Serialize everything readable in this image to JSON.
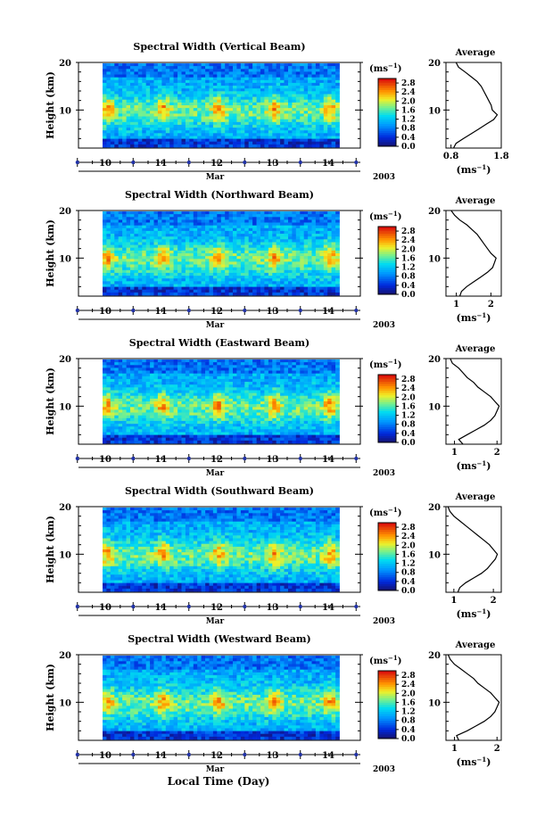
{
  "figure_xlabel": "Local Time (Day)",
  "chart_data": [
    {
      "type": "heatmap",
      "title": "Spectral Width (Vertical Beam)",
      "ylabel": "Height (km)",
      "ylim": [
        2,
        20
      ],
      "yticks": [
        10,
        20
      ],
      "xticks": [
        "10",
        "11",
        "12",
        "13",
        "14"
      ],
      "month": "Mar",
      "year": "2003",
      "cbar_unit": "(ms",
      "cbar_exp": "−1",
      "cbar_ticks": [
        "0.0",
        "0.4",
        "0.8",
        "1.2",
        "1.6",
        "2.0",
        "2.4",
        "2.8"
      ],
      "cbar_range": [
        0,
        3.0
      ],
      "profile": {
        "title": "Average",
        "xlim": [
          0.7,
          1.8
        ],
        "xtick_labels": [
          "0.8",
          "1.8"
        ],
        "xtick_values": [
          0.8,
          1.8
        ],
        "xunit": "(ms",
        "xexp": "−1",
        "heights": [
          2,
          3,
          4,
          5,
          6,
          7,
          8,
          9,
          10,
          11,
          12,
          13,
          14,
          15,
          16,
          17,
          18,
          19,
          20
        ],
        "values": [
          0.85,
          0.9,
          1.05,
          1.2,
          1.35,
          1.5,
          1.65,
          1.72,
          1.62,
          1.6,
          1.55,
          1.5,
          1.45,
          1.4,
          1.32,
          1.2,
          1.08,
          0.95,
          0.9
        ]
      }
    },
    {
      "type": "heatmap",
      "title": "Spectral Width (Northward Beam)",
      "ylabel": "Height (km)",
      "ylim": [
        2,
        20
      ],
      "yticks": [
        10,
        20
      ],
      "xticks": [
        "10",
        "11",
        "12",
        "13",
        "14"
      ],
      "month": "Mar",
      "year": "2003",
      "cbar_unit": "(ms",
      "cbar_exp": "−1",
      "cbar_ticks": [
        "0.0",
        "0.4",
        "0.8",
        "1.2",
        "1.6",
        "2.0",
        "2.4",
        "2.8"
      ],
      "cbar_range": [
        0,
        3.0
      ],
      "profile": {
        "title": "Average",
        "xlim": [
          0.7,
          2.3
        ],
        "xtick_labels": [
          "1",
          "2"
        ],
        "xtick_values": [
          1,
          2
        ],
        "xunit": "(ms",
        "xexp": "−1",
        "heights": [
          2,
          3,
          4,
          5,
          6,
          7,
          8,
          9,
          10,
          11,
          12,
          13,
          14,
          15,
          16,
          17,
          18,
          19,
          20
        ],
        "values": [
          1.1,
          1.15,
          1.3,
          1.5,
          1.7,
          1.9,
          2.05,
          2.1,
          2.15,
          2.0,
          1.9,
          1.8,
          1.7,
          1.6,
          1.45,
          1.3,
          1.1,
          0.95,
          0.85
        ]
      }
    },
    {
      "type": "heatmap",
      "title": "Spectral Width (Eastward Beam)",
      "ylabel": "Height (km)",
      "ylim": [
        2,
        20
      ],
      "yticks": [
        10,
        20
      ],
      "xticks": [
        "10",
        "11",
        "12",
        "13",
        "14"
      ],
      "month": "Mar",
      "year": "2003",
      "cbar_unit": "(ms",
      "cbar_exp": "−1",
      "cbar_ticks": [
        "0.0",
        "0.4",
        "0.8",
        "1.2",
        "1.6",
        "2.0",
        "2.4",
        "2.8"
      ],
      "cbar_range": [
        0,
        3.0
      ],
      "profile": {
        "title": "Average",
        "xlim": [
          0.8,
          2.1
        ],
        "xtick_labels": [
          "1",
          "2"
        ],
        "xtick_values": [
          1,
          2
        ],
        "xunit": "(ms",
        "xexp": "−1",
        "heights": [
          2,
          3,
          4,
          5,
          6,
          7,
          8,
          9,
          10,
          11,
          12,
          13,
          14,
          15,
          16,
          17,
          18,
          19,
          20
        ],
        "values": [
          1.2,
          1.1,
          1.3,
          1.5,
          1.7,
          1.85,
          1.95,
          2.0,
          2.05,
          1.95,
          1.85,
          1.7,
          1.55,
          1.45,
          1.3,
          1.2,
          1.1,
          0.95,
          0.9
        ]
      }
    },
    {
      "type": "heatmap",
      "title": "Spectral Width (Southward Beam)",
      "ylabel": "Height (km)",
      "ylim": [
        2,
        20
      ],
      "yticks": [
        10,
        20
      ],
      "xticks": [
        "10",
        "11",
        "12",
        "13",
        "14"
      ],
      "month": "Mar",
      "year": "2003",
      "cbar_unit": "(ms",
      "cbar_exp": "−1",
      "cbar_ticks": [
        "0.0",
        "0.4",
        "0.8",
        "1.2",
        "1.6",
        "2.0",
        "2.4",
        "2.8"
      ],
      "cbar_range": [
        0,
        3.0
      ],
      "profile": {
        "title": "Average",
        "xlim": [
          0.8,
          2.2
        ],
        "xtick_labels": [
          "1",
          "2"
        ],
        "xtick_values": [
          1,
          2
        ],
        "xunit": "(ms",
        "xexp": "−1",
        "heights": [
          2,
          3,
          4,
          5,
          6,
          7,
          8,
          9,
          10,
          11,
          12,
          13,
          14,
          15,
          16,
          17,
          18,
          19,
          20
        ],
        "values": [
          1.1,
          1.15,
          1.3,
          1.5,
          1.7,
          1.85,
          1.95,
          2.05,
          2.1,
          2.0,
          1.9,
          1.75,
          1.6,
          1.45,
          1.3,
          1.15,
          1.0,
          0.9,
          0.85
        ]
      }
    },
    {
      "type": "heatmap",
      "title": "Spectral Width (Westward Beam)",
      "ylabel": "Height (km)",
      "ylim": [
        2,
        20
      ],
      "yticks": [
        10,
        20
      ],
      "xticks": [
        "10",
        "11",
        "12",
        "13",
        "14"
      ],
      "month": "Mar",
      "year": "2003",
      "cbar_unit": "(ms",
      "cbar_exp": "−1",
      "cbar_ticks": [
        "0.0",
        "0.4",
        "0.8",
        "1.2",
        "1.6",
        "2.0",
        "2.4",
        "2.8"
      ],
      "cbar_range": [
        0,
        3.0
      ],
      "profile": {
        "title": "Average",
        "xlim": [
          0.8,
          2.1
        ],
        "xtick_labels": [
          "1",
          "2"
        ],
        "xtick_values": [
          1,
          2
        ],
        "xunit": "(ms",
        "xexp": "−1",
        "heights": [
          2,
          3,
          4,
          5,
          6,
          7,
          8,
          9,
          10,
          11,
          12,
          13,
          14,
          15,
          16,
          17,
          18,
          19,
          20
        ],
        "values": [
          1.1,
          1.05,
          1.3,
          1.5,
          1.7,
          1.85,
          1.95,
          2.0,
          2.05,
          1.95,
          1.85,
          1.7,
          1.55,
          1.45,
          1.3,
          1.15,
          1.0,
          0.9,
          0.85
        ]
      }
    }
  ]
}
